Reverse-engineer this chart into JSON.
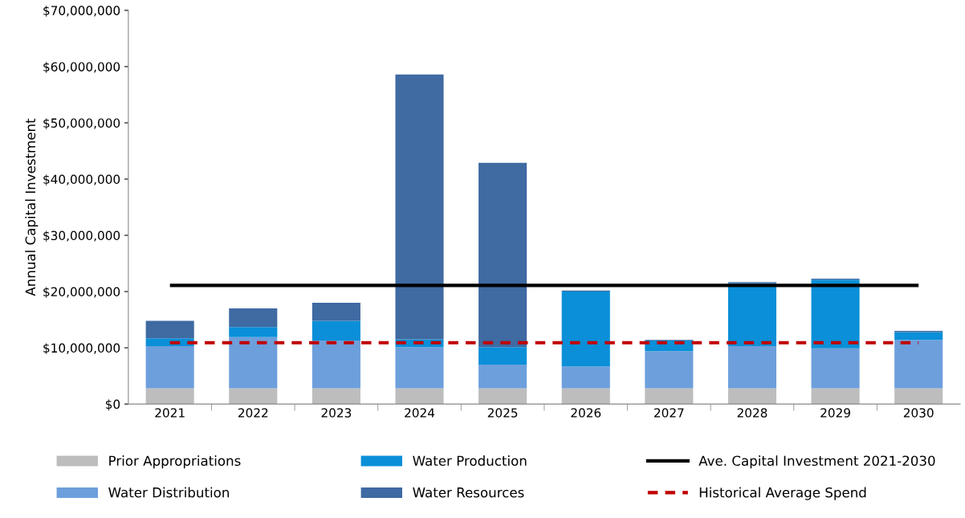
{
  "chart_data": {
    "type": "bar",
    "stacked": true,
    "ylabel": "Annual Capital Investment",
    "categories": [
      "2021",
      "2022",
      "2023",
      "2024",
      "2025",
      "2026",
      "2027",
      "2028",
      "2029",
      "2030"
    ],
    "series": [
      {
        "name": "Prior Appropriations",
        "color": "#bdbdbd",
        "values": [
          2800000,
          2800000,
          2800000,
          2800000,
          2800000,
          2800000,
          2800000,
          2800000,
          2800000,
          2800000
        ]
      },
      {
        "name": "Water Distribution",
        "color": "#6d9fdc",
        "values": [
          7500000,
          9100000,
          8500000,
          7300000,
          4200000,
          3900000,
          6600000,
          7500000,
          7100000,
          8600000
        ]
      },
      {
        "name": "Water Production",
        "color": "#0a8fd8",
        "values": [
          1400000,
          1800000,
          3500000,
          1400000,
          3100000,
          13300000,
          1900000,
          11200000,
          12200000,
          1400000
        ]
      },
      {
        "name": "Water Resources",
        "color": "#3f6aa2",
        "values": [
          3100000,
          3300000,
          3200000,
          47100000,
          32800000,
          200000,
          100000,
          200000,
          200000,
          200000
        ]
      }
    ],
    "ref_lines": [
      {
        "axis": "y",
        "value": 21100000,
        "label": "Ave. Capital Investment 2021-2030",
        "color": "#000000",
        "line_style": "solid"
      },
      {
        "axis": "y",
        "value": 10900000,
        "label": "Historical Average Spend",
        "color": "#c00000",
        "line_style": "dashed"
      }
    ],
    "ylim": [
      0,
      70000000
    ],
    "yticks": [
      {
        "value": 0,
        "label": "$0"
      },
      {
        "value": 10000000,
        "label": "$10,000,000"
      },
      {
        "value": 20000000,
        "label": "$20,000,000"
      },
      {
        "value": 30000000,
        "label": "$30,000,000"
      },
      {
        "value": 40000000,
        "label": "$40,000,000"
      },
      {
        "value": 50000000,
        "label": "$50,000,000"
      },
      {
        "value": 60000000,
        "label": "$60,000,000"
      },
      {
        "value": 70000000,
        "label": "$70,000,000"
      }
    ],
    "grid": false,
    "legend": "bottom"
  }
}
